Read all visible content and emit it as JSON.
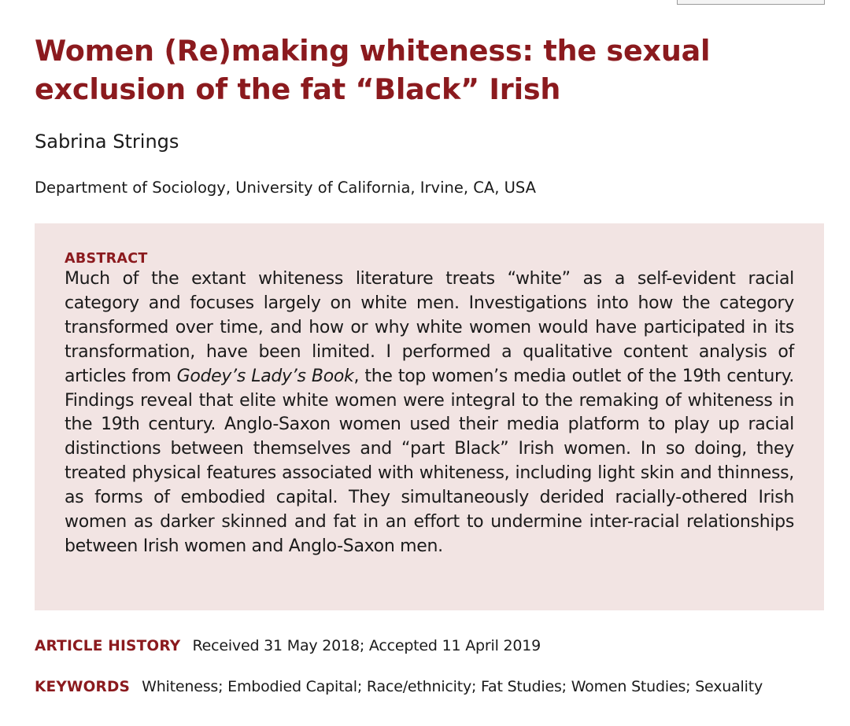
{
  "article": {
    "title": "Women (Re)making whiteness: the sexual exclusion of the fat “Black” Irish",
    "author": "Sabrina Strings",
    "affiliation": "Department of Sociology, University of California, Irvine, CA, USA"
  },
  "abstract": {
    "heading": "ABSTRACT",
    "text_before_italic": "Much of the extant whiteness literature treats “white” as a self-evident racial category and focuses largely on white men. Investigations into how the category transformed over time, and how or why white women would have participated in its transformation, have been limited. I performed a qualitative content analysis of articles from ",
    "italic_title": "Godey’s Lady’s Book",
    "text_after_italic": ", the top women’s media outlet of the 19th century. Findings reveal that elite white women were integral to the remaking of whiteness in the 19th century. Anglo-Saxon women used their media platform to play up racial distinctions between themselves and “part Black” Irish women. In so doing, they treated physical features associated with whiteness, including light skin and thinness, as forms of embodied capital. They simultaneously derided racially-othered Irish women as darker skinned and fat in an effort to undermine inter-racial relationships between Irish women and Anglo-Saxon men."
  },
  "article_history": {
    "label": "ARTICLE HISTORY",
    "value": "Received 31 May 2018; Accepted 11 April 2019"
  },
  "keywords": {
    "label": "KEYWORDS",
    "value": "Whiteness; Embodied Capital; Race/ethnicity; Fat Studies; Women Studies; Sexuality"
  },
  "colors": {
    "accent": "#8b1a1e",
    "abstract_background": "#f2e4e3",
    "body_text": "#1a1a1a"
  }
}
